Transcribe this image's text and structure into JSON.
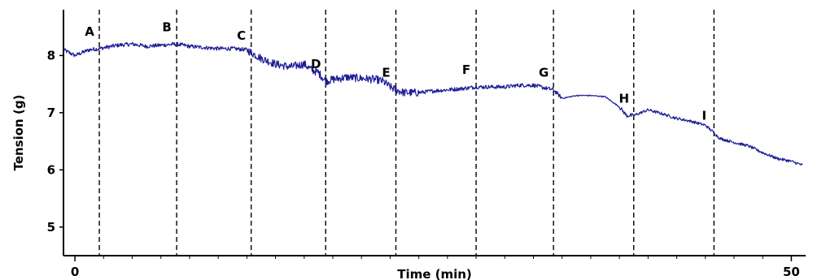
{
  "chart_data": {
    "type": "line",
    "xlabel": "Time (min)",
    "ylabel": "Tension (g)",
    "xlim": [
      -0.8,
      51
    ],
    "ylim": [
      4.5,
      8.8
    ],
    "x_ticks": [
      0,
      50
    ],
    "y_ticks": [
      5,
      6,
      7,
      8
    ],
    "grid": false,
    "line_color": "#1c1c96",
    "marker_line_color": "#000000",
    "markers": [
      {
        "label": "A",
        "x": 1.7
      },
      {
        "label": "B",
        "x": 7.1
      },
      {
        "label": "C",
        "x": 12.3
      },
      {
        "label": "D",
        "x": 17.5
      },
      {
        "label": "E",
        "x": 22.4
      },
      {
        "label": "F",
        "x": 28.0
      },
      {
        "label": "G",
        "x": 33.4
      },
      {
        "label": "H",
        "x": 39.0
      },
      {
        "label": "I",
        "x": 44.6
      }
    ],
    "series": [
      {
        "x": [
          -0.8,
          0,
          1,
          1.7,
          3,
          4,
          5,
          6,
          7.1,
          8,
          9,
          10,
          11,
          12,
          12.3,
          13,
          14,
          15,
          16,
          16.5,
          17.0,
          17.5,
          18,
          19,
          20,
          21,
          21.5,
          22,
          22.4,
          23,
          24,
          25,
          26,
          27,
          28,
          29,
          30,
          31,
          32,
          33,
          33.4,
          34,
          35,
          36,
          37,
          38,
          38.5,
          39,
          39.5,
          40,
          41,
          42,
          43,
          44,
          44.6,
          45,
          46,
          47,
          48,
          49,
          50,
          50.8
        ],
        "y": [
          8.1,
          8.0,
          8.1,
          8.12,
          8.18,
          8.2,
          8.16,
          8.18,
          8.2,
          8.16,
          8.14,
          8.12,
          8.12,
          8.1,
          8.05,
          7.95,
          7.85,
          7.8,
          7.85,
          7.75,
          7.7,
          7.55,
          7.58,
          7.62,
          7.6,
          7.58,
          7.55,
          7.45,
          7.4,
          7.35,
          7.35,
          7.38,
          7.4,
          7.42,
          7.45,
          7.45,
          7.45,
          7.48,
          7.48,
          7.42,
          7.4,
          7.25,
          7.3,
          7.3,
          7.28,
          7.1,
          6.95,
          6.95,
          7.0,
          7.05,
          6.98,
          6.9,
          6.85,
          6.78,
          6.65,
          6.55,
          6.48,
          6.42,
          6.3,
          6.2,
          6.15,
          6.08
        ]
      }
    ]
  }
}
